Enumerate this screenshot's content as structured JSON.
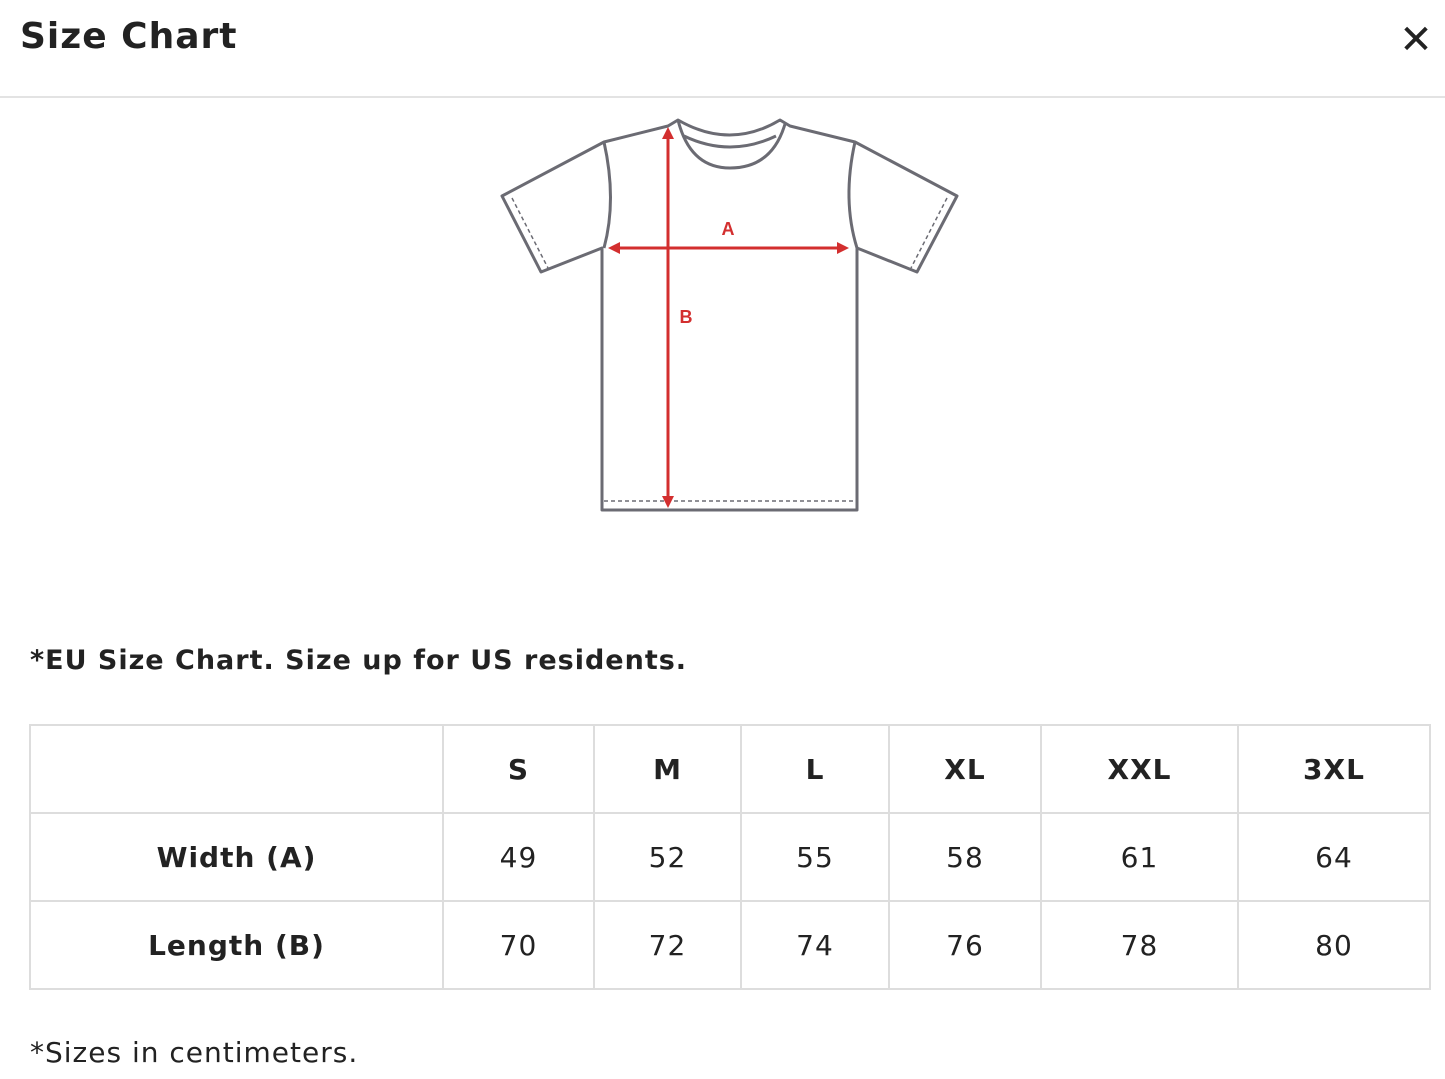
{
  "header": {
    "title": "Size Chart",
    "close_icon": "close-icon"
  },
  "diagram": {
    "label_a": "A",
    "label_b": "B",
    "accent": "#d32f2f",
    "outline": "#6b6b73"
  },
  "note": "*EU Size Chart. Size up for US residents.",
  "table": {
    "columns": [
      "",
      "S",
      "M",
      "L",
      "XL",
      "XXL",
      "3XL"
    ],
    "rows": [
      {
        "label": "Width (A)",
        "values": [
          "49",
          "52",
          "55",
          "58",
          "61",
          "64"
        ]
      },
      {
        "label": "Length (B)",
        "values": [
          "70",
          "72",
          "74",
          "76",
          "78",
          "80"
        ]
      }
    ]
  },
  "footnote": "*Sizes in centimeters."
}
